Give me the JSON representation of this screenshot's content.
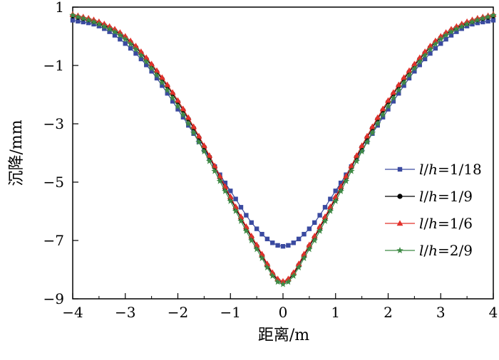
{
  "chart_data": {
    "type": "line",
    "title": "",
    "xlabel": "距离/m",
    "ylabel": "沉降/mm",
    "xlim": [
      -4,
      4
    ],
    "ylim": [
      -9,
      1
    ],
    "xticks": [
      -4,
      -3,
      -2,
      -1,
      0,
      1,
      2,
      3,
      4
    ],
    "xtick_labels": [
      "−4",
      "−3",
      "−2",
      "−1",
      "0",
      "1",
      "2",
      "3",
      "4"
    ],
    "yticks": [
      1,
      -1,
      -3,
      -5,
      -7,
      -9
    ],
    "ytick_labels": [
      "1",
      "−1",
      "−3",
      "−5",
      "−7",
      "−9"
    ],
    "grid": false,
    "legend_position": "right",
    "profiles": {
      "x": [
        -4.0,
        -3.5,
        -3.0,
        -2.5,
        -2.0,
        -1.5,
        -1.0,
        -0.5,
        0.0,
        0.5,
        1.0,
        1.5,
        2.0,
        2.5,
        3.0,
        3.5,
        4.0
      ]
    },
    "series": [
      {
        "name_italic_1": "l",
        "name_sep": "/",
        "name_italic_2": "h",
        "name_value": "=1/18",
        "color": "#3a4aa0",
        "marker": "square",
        "y": [
          0.55,
          0.35,
          -0.25,
          -1.2,
          -2.5,
          -3.9,
          -5.3,
          -6.6,
          -7.2,
          -6.6,
          -5.3,
          -3.9,
          -2.5,
          -1.2,
          -0.25,
          0.35,
          0.55
        ]
      },
      {
        "name_italic_1": "l",
        "name_sep": "/",
        "name_italic_2": "h",
        "name_value": "=1/9",
        "color": "#000000",
        "marker": "circle",
        "y": [
          0.7,
          0.45,
          -0.05,
          -1.0,
          -2.25,
          -3.8,
          -5.55,
          -7.2,
          -8.45,
          -7.2,
          -5.55,
          -3.8,
          -2.25,
          -1.0,
          -0.05,
          0.45,
          0.7
        ]
      },
      {
        "name_italic_1": "l",
        "name_sep": "/",
        "name_italic_2": "h",
        "name_value": "=1/6",
        "color": "#e2312b",
        "marker": "triangle",
        "y": [
          0.75,
          0.5,
          0.0,
          -0.95,
          -2.2,
          -3.75,
          -5.5,
          -7.15,
          -8.4,
          -7.15,
          -5.5,
          -3.75,
          -2.2,
          -0.95,
          0.0,
          0.5,
          0.75
        ]
      },
      {
        "name_italic_1": "l",
        "name_sep": "/",
        "name_italic_2": "h",
        "name_value": "=2/9",
        "color": "#3e8a45",
        "marker": "star",
        "y": [
          0.72,
          0.42,
          -0.1,
          -1.1,
          -2.4,
          -3.95,
          -5.65,
          -7.3,
          -8.5,
          -7.3,
          -5.65,
          -3.95,
          -2.4,
          -1.1,
          -0.1,
          0.42,
          0.72
        ]
      }
    ]
  }
}
